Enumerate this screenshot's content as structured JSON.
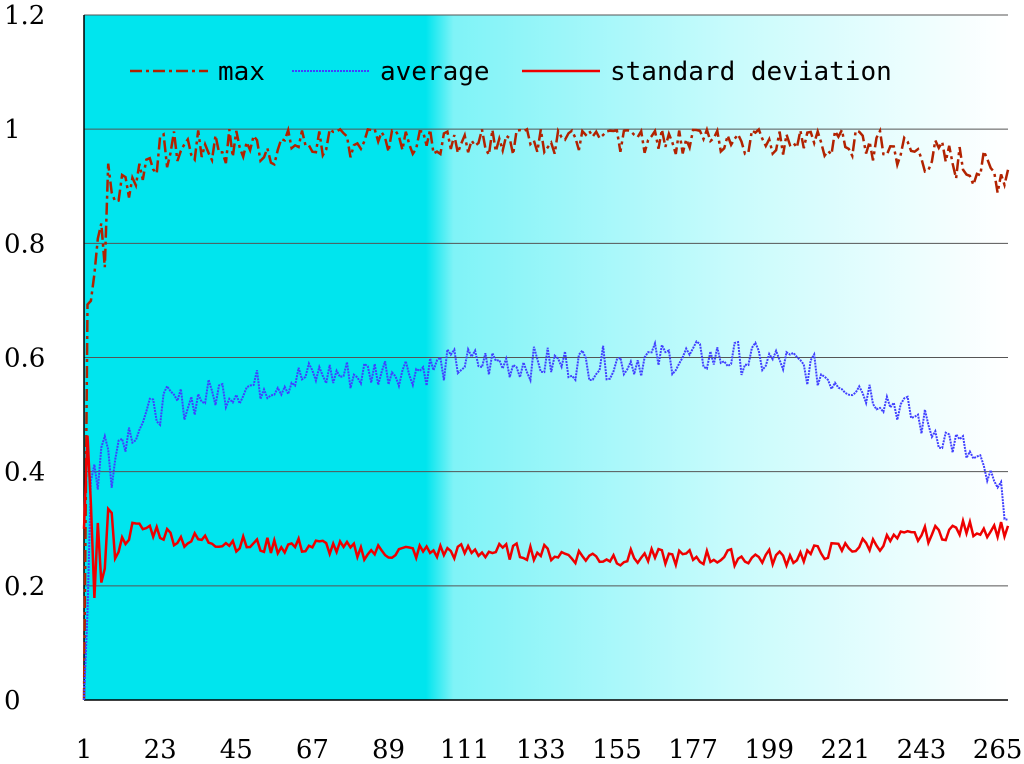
{
  "chart_data": {
    "type": "line",
    "title": "",
    "xlabel": "",
    "ylabel": "",
    "x_range": [
      1,
      268
    ],
    "ylim": [
      0,
      1.2
    ],
    "x_ticks": [
      "1",
      "23",
      "45",
      "67",
      "89",
      "111",
      "133",
      "155",
      "177",
      "199",
      "221",
      "243",
      "265"
    ],
    "y_ticks": [
      "0",
      "0.2",
      "0.4",
      "0.6",
      "0.8",
      "1",
      "1.2"
    ],
    "grid": "horizontal",
    "legend_position": "top",
    "background": {
      "left_color": "#00e5ee",
      "right_color": "#ffffff",
      "solid_until_x": 100
    },
    "series": [
      {
        "name": "max",
        "color": "#b22200",
        "style": "dash-dot",
        "envelope": [
          [
            1,
            0.0
          ],
          [
            2,
            0.68
          ],
          [
            3,
            0.78
          ],
          [
            5,
            0.82
          ],
          [
            8,
            0.86
          ],
          [
            12,
            0.9
          ],
          [
            16,
            0.92
          ],
          [
            20,
            0.95
          ],
          [
            25,
            0.96
          ],
          [
            30,
            0.97
          ],
          [
            40,
            0.97
          ],
          [
            50,
            0.97
          ],
          [
            60,
            0.97
          ],
          [
            70,
            0.98
          ],
          [
            90,
            0.99
          ],
          [
            110,
            0.99
          ],
          [
            150,
            0.99
          ],
          [
            180,
            0.99
          ],
          [
            200,
            0.99
          ],
          [
            220,
            0.98
          ],
          [
            240,
            0.96
          ],
          [
            255,
            0.94
          ],
          [
            265,
            0.92
          ],
          [
            268,
            0.93
          ]
        ],
        "noise": 0.035
      },
      {
        "name": "average",
        "color": "#4040ff",
        "style": "dotted",
        "envelope": [
          [
            1,
            0.0
          ],
          [
            2,
            0.2
          ],
          [
            3,
            0.38
          ],
          [
            5,
            0.42
          ],
          [
            8,
            0.44
          ],
          [
            12,
            0.46
          ],
          [
            16,
            0.48
          ],
          [
            20,
            0.5
          ],
          [
            25,
            0.52
          ],
          [
            30,
            0.52
          ],
          [
            40,
            0.54
          ],
          [
            50,
            0.55
          ],
          [
            60,
            0.56
          ],
          [
            70,
            0.57
          ],
          [
            80,
            0.57
          ],
          [
            90,
            0.58
          ],
          [
            100,
            0.58
          ],
          [
            110,
            0.59
          ],
          [
            130,
            0.59
          ],
          [
            150,
            0.59
          ],
          [
            170,
            0.6
          ],
          [
            190,
            0.6
          ],
          [
            205,
            0.59
          ],
          [
            215,
            0.57
          ],
          [
            225,
            0.55
          ],
          [
            235,
            0.52
          ],
          [
            245,
            0.48
          ],
          [
            255,
            0.44
          ],
          [
            262,
            0.39
          ],
          [
            265,
            0.36
          ],
          [
            268,
            0.34
          ]
        ],
        "noise": 0.03
      },
      {
        "name": "standard deviation",
        "color": "#ee0000",
        "style": "solid",
        "envelope": [
          [
            1,
            0.3
          ],
          [
            2,
            0.42
          ],
          [
            3,
            0.3
          ],
          [
            4,
            0.2
          ],
          [
            5,
            0.35
          ],
          [
            6,
            0.18
          ],
          [
            8,
            0.32
          ],
          [
            10,
            0.26
          ],
          [
            15,
            0.3
          ],
          [
            20,
            0.3
          ],
          [
            25,
            0.29
          ],
          [
            30,
            0.28
          ],
          [
            40,
            0.28
          ],
          [
            50,
            0.27
          ],
          [
            60,
            0.27
          ],
          [
            70,
            0.27
          ],
          [
            80,
            0.26
          ],
          [
            90,
            0.26
          ],
          [
            100,
            0.26
          ],
          [
            110,
            0.26
          ],
          [
            130,
            0.26
          ],
          [
            150,
            0.25
          ],
          [
            170,
            0.25
          ],
          [
            190,
            0.25
          ],
          [
            205,
            0.25
          ],
          [
            215,
            0.26
          ],
          [
            225,
            0.27
          ],
          [
            235,
            0.28
          ],
          [
            245,
            0.29
          ],
          [
            255,
            0.3
          ],
          [
            262,
            0.3
          ],
          [
            268,
            0.3
          ]
        ],
        "noise": 0.015
      }
    ]
  }
}
